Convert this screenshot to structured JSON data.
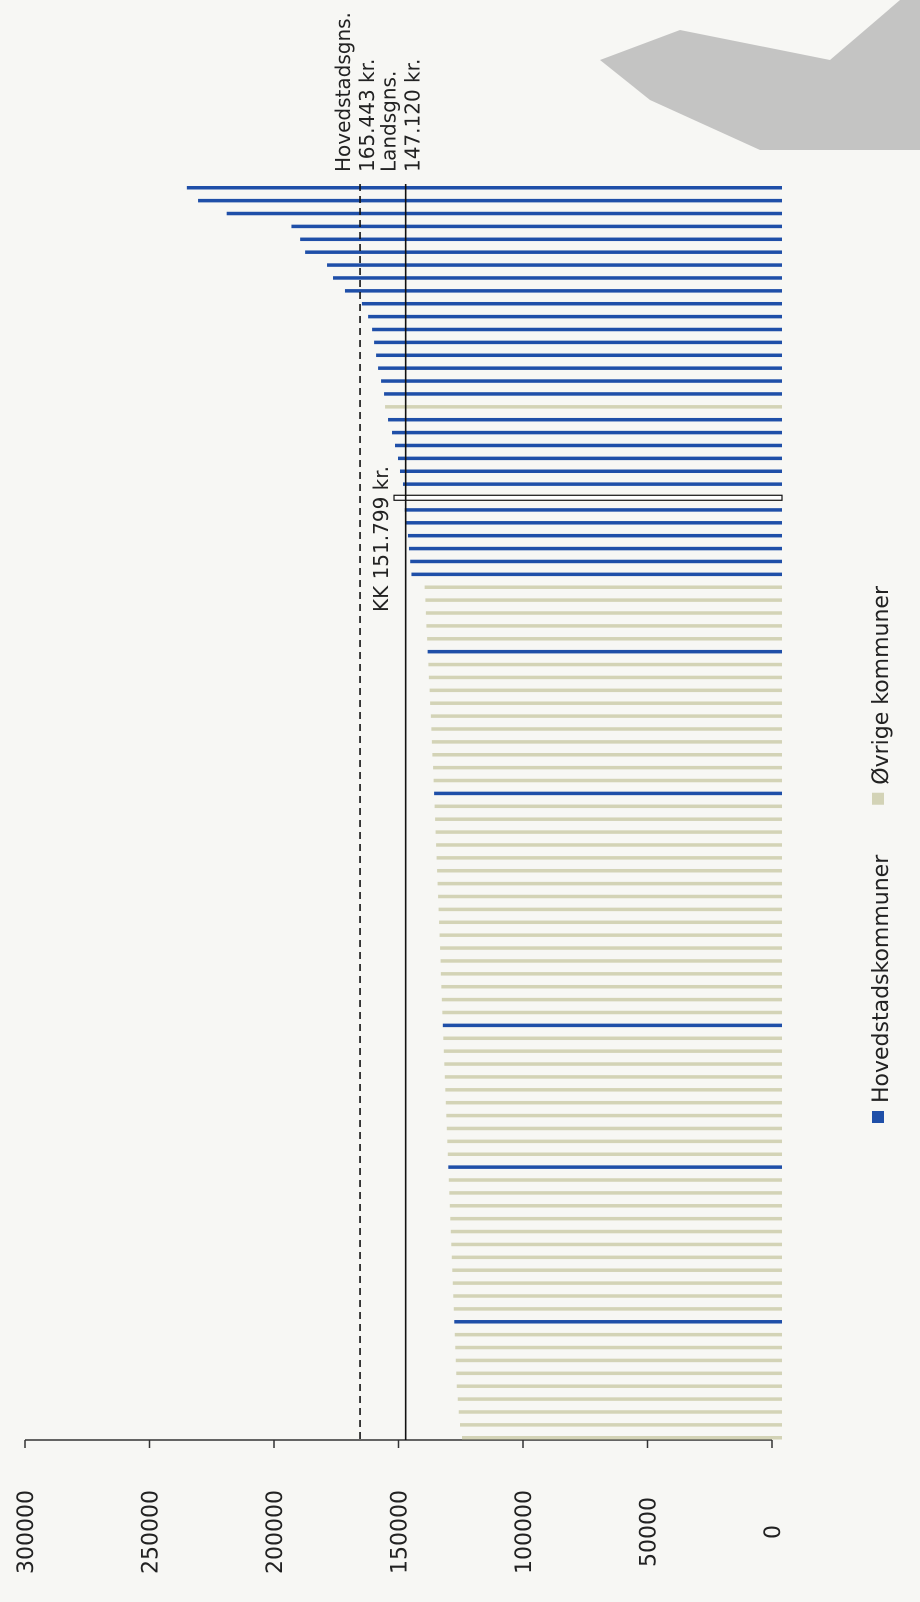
{
  "chart_data": {
    "type": "bar",
    "orientation": "horizontal",
    "value_axis_reversed": true,
    "series": [
      {
        "name": "Hovedstadskommuner",
        "color": "#1f4fa8",
        "values": [
          235000,
          230500,
          219000,
          193000,
          189500,
          187500,
          178700,
          176300,
          171500,
          164700,
          162200,
          160600,
          159800,
          159000,
          158200,
          157000,
          155800,
          null,
          154200,
          152600,
          151400,
          150200,
          149400,
          148200,
          151799,
          147500,
          146800,
          146200,
          145800,
          145300,
          144800,
          null,
          null,
          null,
          null,
          null,
          138300,
          null,
          null,
          null,
          null,
          null,
          null,
          null,
          null,
          null,
          null,
          135700,
          null,
          null,
          null,
          null,
          null,
          null,
          null,
          null,
          null,
          null,
          null,
          null,
          null,
          null,
          null,
          null,
          null,
          132200,
          null,
          null,
          null,
          null,
          null,
          null,
          null,
          null,
          null,
          null,
          130000,
          null,
          null,
          null,
          null,
          null,
          null,
          null,
          null,
          null,
          null,
          null,
          127600,
          null,
          null,
          null,
          null,
          null,
          null,
          null,
          null,
          null
        ]
      },
      {
        "name": "Øvrige kommuner",
        "color": "#d3d3b6",
        "values": [
          null,
          null,
          null,
          null,
          null,
          null,
          null,
          null,
          null,
          null,
          null,
          null,
          null,
          null,
          null,
          null,
          null,
          155400,
          null,
          null,
          null,
          null,
          null,
          null,
          null,
          null,
          null,
          null,
          null,
          null,
          null,
          139500,
          139200,
          139000,
          138800,
          138500,
          null,
          138000,
          137800,
          137500,
          137300,
          137000,
          136800,
          136600,
          136400,
          136100,
          135900,
          null,
          135500,
          135300,
          135100,
          134900,
          134700,
          134500,
          134300,
          134100,
          133900,
          133700,
          133500,
          133300,
          133100,
          133000,
          132800,
          132600,
          132400,
          null,
          132000,
          131800,
          131600,
          131400,
          131200,
          131000,
          130800,
          130600,
          130400,
          130200,
          null,
          129800,
          129600,
          129400,
          129200,
          129000,
          128800,
          128600,
          128400,
          128200,
          128000,
          127800,
          null,
          127400,
          127200,
          127000,
          126800,
          126600,
          126200,
          125800,
          125300,
          124500
        ]
      }
    ],
    "reference_lines": [
      {
        "name": "Hovedstadsgns.",
        "label": "165.443 kr.",
        "value": 165443,
        "style": "dashed"
      },
      {
        "name": "Landsgns.",
        "label": "147.120 kr.",
        "value": 147120,
        "style": "solid"
      }
    ],
    "annotations": [
      {
        "text": "KK 151.799 kr.",
        "value": 151799
      }
    ],
    "xlim": [
      0,
      300000
    ],
    "xticks": [
      0,
      50000,
      100000,
      150000,
      200000,
      250000,
      300000
    ]
  }
}
